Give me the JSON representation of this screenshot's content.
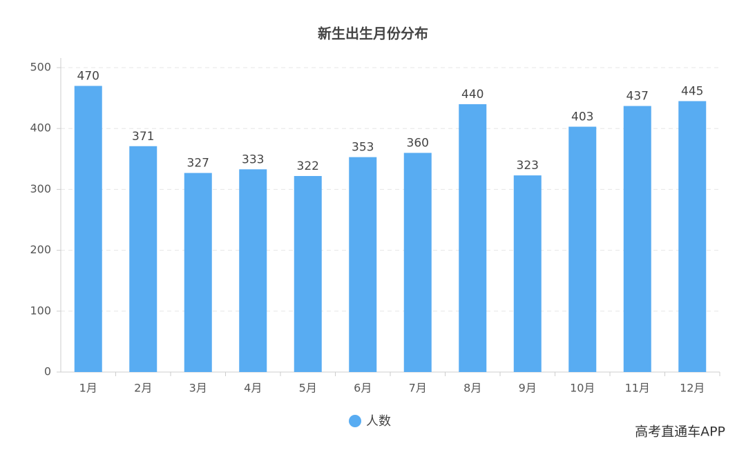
{
  "chart_data": {
    "type": "bar",
    "title": "新生出生月份分布",
    "categories": [
      "1月",
      "2月",
      "3月",
      "4月",
      "5月",
      "6月",
      "7月",
      "8月",
      "9月",
      "10月",
      "11月",
      "12月"
    ],
    "series": [
      {
        "name": "人数",
        "color": "#58acf2",
        "values": [
          470,
          371,
          327,
          333,
          322,
          353,
          360,
          440,
          323,
          403,
          437,
          445
        ]
      }
    ],
    "ylim": [
      0,
      500
    ],
    "yticks": [
      0,
      100,
      200,
      300,
      400,
      500
    ],
    "grid": true,
    "legend": "bottom",
    "watermark": "高考直通车APP"
  }
}
